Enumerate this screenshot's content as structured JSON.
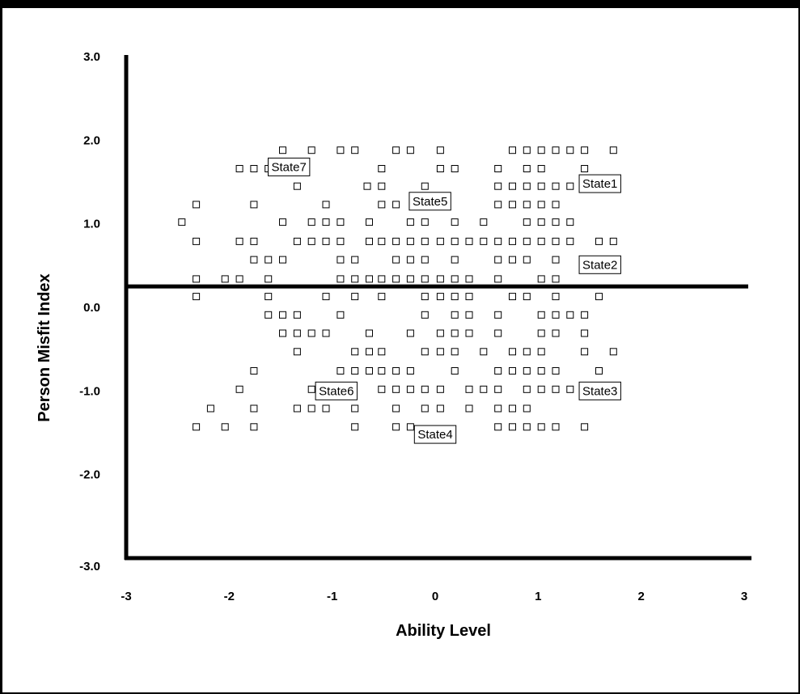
{
  "chart_data": {
    "type": "scatter",
    "title": "",
    "xlabel": "Ability Level",
    "ylabel": "Person Misfit Index",
    "xlim": [
      -3,
      3
    ],
    "ylim": [
      -3,
      3
    ],
    "x_ticks": [
      "-3",
      "-2",
      "-1",
      "0",
      "1",
      "2",
      "3"
    ],
    "x_tick_values": [
      -3,
      -2,
      -1,
      0,
      1,
      2,
      3
    ],
    "y_ticks": [
      "3.0",
      "2.0",
      "1.0",
      "0.0",
      "-1.0",
      "-2.0",
      "-3.0"
    ],
    "y_tick_values": [
      3,
      2,
      1,
      0,
      -1,
      -2,
      -3
    ],
    "reference_line_y": 0.25,
    "grid": false,
    "marker": "open-square",
    "state_labels": [
      {
        "text": "State7",
        "x": -1.42,
        "y": 1.68
      },
      {
        "text": "State1",
        "x": 1.6,
        "y": 1.48
      },
      {
        "text": "State5",
        "x": -0.05,
        "y": 1.27
      },
      {
        "text": "State2",
        "x": 1.6,
        "y": 0.51
      },
      {
        "text": "State6",
        "x": -0.96,
        "y": -1.0
      },
      {
        "text": "State3",
        "x": 1.6,
        "y": -1.0
      },
      {
        "text": "State4",
        "x": 0.0,
        "y": -1.52
      }
    ],
    "points": [
      [
        -1.48,
        1.88
      ],
      [
        -1.2,
        1.88
      ],
      [
        -0.92,
        1.88
      ],
      [
        -0.78,
        1.88
      ],
      [
        -0.38,
        1.88
      ],
      [
        -0.24,
        1.88
      ],
      [
        0.05,
        1.88
      ],
      [
        0.75,
        1.88
      ],
      [
        0.89,
        1.88
      ],
      [
        1.03,
        1.88
      ],
      [
        1.17,
        1.88
      ],
      [
        1.31,
        1.88
      ],
      [
        1.45,
        1.88
      ],
      [
        1.73,
        1.88
      ],
      [
        -1.9,
        1.66
      ],
      [
        -1.76,
        1.66
      ],
      [
        -1.62,
        1.66
      ],
      [
        -0.52,
        1.66
      ],
      [
        0.05,
        1.66
      ],
      [
        0.19,
        1.66
      ],
      [
        0.61,
        1.66
      ],
      [
        0.89,
        1.66
      ],
      [
        1.03,
        1.66
      ],
      [
        1.45,
        1.66
      ],
      [
        -1.34,
        1.45
      ],
      [
        -0.66,
        1.45
      ],
      [
        -0.52,
        1.45
      ],
      [
        -0.1,
        1.45
      ],
      [
        0.61,
        1.45
      ],
      [
        0.75,
        1.45
      ],
      [
        0.89,
        1.45
      ],
      [
        1.03,
        1.45
      ],
      [
        1.17,
        1.45
      ],
      [
        1.31,
        1.45
      ],
      [
        -2.32,
        1.23
      ],
      [
        -1.76,
        1.23
      ],
      [
        -1.06,
        1.23
      ],
      [
        -0.52,
        1.23
      ],
      [
        -0.38,
        1.23
      ],
      [
        -0.1,
        1.23
      ],
      [
        0.61,
        1.23
      ],
      [
        0.75,
        1.23
      ],
      [
        0.89,
        1.23
      ],
      [
        1.03,
        1.23
      ],
      [
        1.17,
        1.23
      ],
      [
        -2.46,
        1.02
      ],
      [
        -1.48,
        1.02
      ],
      [
        -1.2,
        1.02
      ],
      [
        -1.06,
        1.02
      ],
      [
        -0.92,
        1.02
      ],
      [
        -0.64,
        1.02
      ],
      [
        -0.24,
        1.02
      ],
      [
        -0.1,
        1.02
      ],
      [
        0.19,
        1.02
      ],
      [
        0.47,
        1.02
      ],
      [
        0.89,
        1.02
      ],
      [
        1.03,
        1.02
      ],
      [
        1.17,
        1.02
      ],
      [
        1.31,
        1.02
      ],
      [
        -2.32,
        0.79
      ],
      [
        -1.9,
        0.79
      ],
      [
        -1.76,
        0.79
      ],
      [
        -1.34,
        0.79
      ],
      [
        -1.2,
        0.79
      ],
      [
        -1.06,
        0.79
      ],
      [
        -0.92,
        0.79
      ],
      [
        -0.64,
        0.79
      ],
      [
        -0.52,
        0.79
      ],
      [
        -0.38,
        0.79
      ],
      [
        -0.24,
        0.79
      ],
      [
        -0.1,
        0.79
      ],
      [
        0.05,
        0.79
      ],
      [
        0.19,
        0.79
      ],
      [
        0.33,
        0.79
      ],
      [
        0.47,
        0.79
      ],
      [
        0.61,
        0.79
      ],
      [
        0.75,
        0.79
      ],
      [
        0.89,
        0.79
      ],
      [
        1.03,
        0.79
      ],
      [
        1.17,
        0.79
      ],
      [
        1.31,
        0.79
      ],
      [
        1.59,
        0.79
      ],
      [
        1.73,
        0.79
      ],
      [
        -1.76,
        0.57
      ],
      [
        -1.62,
        0.57
      ],
      [
        -1.48,
        0.57
      ],
      [
        -0.92,
        0.57
      ],
      [
        -0.78,
        0.57
      ],
      [
        -0.38,
        0.57
      ],
      [
        -0.24,
        0.57
      ],
      [
        -0.1,
        0.57
      ],
      [
        0.19,
        0.57
      ],
      [
        0.61,
        0.57
      ],
      [
        0.75,
        0.57
      ],
      [
        0.89,
        0.57
      ],
      [
        1.17,
        0.57
      ],
      [
        -2.32,
        0.34
      ],
      [
        -2.04,
        0.34
      ],
      [
        -1.9,
        0.34
      ],
      [
        -1.62,
        0.34
      ],
      [
        -0.92,
        0.34
      ],
      [
        -0.78,
        0.34
      ],
      [
        -0.64,
        0.34
      ],
      [
        -0.52,
        0.34
      ],
      [
        -0.38,
        0.34
      ],
      [
        -0.24,
        0.34
      ],
      [
        -0.1,
        0.34
      ],
      [
        0.05,
        0.34
      ],
      [
        0.19,
        0.34
      ],
      [
        0.33,
        0.34
      ],
      [
        0.61,
        0.34
      ],
      [
        1.03,
        0.34
      ],
      [
        1.17,
        0.34
      ],
      [
        -2.32,
        0.13
      ],
      [
        -1.62,
        0.13
      ],
      [
        -1.06,
        0.13
      ],
      [
        -0.78,
        0.13
      ],
      [
        -0.52,
        0.13
      ],
      [
        -0.1,
        0.13
      ],
      [
        0.05,
        0.13
      ],
      [
        0.19,
        0.13
      ],
      [
        0.33,
        0.13
      ],
      [
        0.75,
        0.13
      ],
      [
        0.89,
        0.13
      ],
      [
        1.17,
        0.13
      ],
      [
        1.59,
        0.13
      ],
      [
        -1.62,
        -0.09
      ],
      [
        -1.48,
        -0.09
      ],
      [
        -1.34,
        -0.09
      ],
      [
        -0.92,
        -0.09
      ],
      [
        -0.1,
        -0.09
      ],
      [
        0.19,
        -0.09
      ],
      [
        0.33,
        -0.09
      ],
      [
        0.61,
        -0.09
      ],
      [
        1.03,
        -0.09
      ],
      [
        1.17,
        -0.09
      ],
      [
        1.31,
        -0.09
      ],
      [
        1.45,
        -0.09
      ],
      [
        -1.48,
        -0.31
      ],
      [
        -1.34,
        -0.31
      ],
      [
        -1.2,
        -0.31
      ],
      [
        -1.06,
        -0.31
      ],
      [
        -0.64,
        -0.31
      ],
      [
        -0.24,
        -0.31
      ],
      [
        0.05,
        -0.31
      ],
      [
        0.19,
        -0.31
      ],
      [
        0.33,
        -0.31
      ],
      [
        0.61,
        -0.31
      ],
      [
        1.03,
        -0.31
      ],
      [
        1.17,
        -0.31
      ],
      [
        1.45,
        -0.31
      ],
      [
        -1.34,
        -0.53
      ],
      [
        -0.78,
        -0.53
      ],
      [
        -0.64,
        -0.53
      ],
      [
        -0.52,
        -0.53
      ],
      [
        -0.1,
        -0.53
      ],
      [
        0.05,
        -0.53
      ],
      [
        0.19,
        -0.53
      ],
      [
        0.47,
        -0.53
      ],
      [
        0.75,
        -0.53
      ],
      [
        0.89,
        -0.53
      ],
      [
        1.03,
        -0.53
      ],
      [
        1.45,
        -0.53
      ],
      [
        1.73,
        -0.53
      ],
      [
        -1.76,
        -0.76
      ],
      [
        -0.92,
        -0.76
      ],
      [
        -0.78,
        -0.76
      ],
      [
        -0.64,
        -0.76
      ],
      [
        -0.52,
        -0.76
      ],
      [
        -0.38,
        -0.76
      ],
      [
        -0.24,
        -0.76
      ],
      [
        0.19,
        -0.76
      ],
      [
        0.61,
        -0.76
      ],
      [
        0.75,
        -0.76
      ],
      [
        0.89,
        -0.76
      ],
      [
        1.03,
        -0.76
      ],
      [
        1.17,
        -0.76
      ],
      [
        1.59,
        -0.76
      ],
      [
        -1.9,
        -0.98
      ],
      [
        -1.2,
        -0.98
      ],
      [
        -0.52,
        -0.98
      ],
      [
        -0.38,
        -0.98
      ],
      [
        -0.24,
        -0.98
      ],
      [
        -0.1,
        -0.98
      ],
      [
        0.05,
        -0.98
      ],
      [
        0.33,
        -0.98
      ],
      [
        0.47,
        -0.98
      ],
      [
        0.61,
        -0.98
      ],
      [
        0.89,
        -0.98
      ],
      [
        1.03,
        -0.98
      ],
      [
        1.17,
        -0.98
      ],
      [
        1.31,
        -0.98
      ],
      [
        -2.18,
        -1.21
      ],
      [
        -1.76,
        -1.21
      ],
      [
        -1.34,
        -1.21
      ],
      [
        -1.2,
        -1.21
      ],
      [
        -1.06,
        -1.21
      ],
      [
        -0.78,
        -1.21
      ],
      [
        -0.38,
        -1.21
      ],
      [
        -0.1,
        -1.21
      ],
      [
        0.05,
        -1.21
      ],
      [
        0.33,
        -1.21
      ],
      [
        0.61,
        -1.21
      ],
      [
        0.75,
        -1.21
      ],
      [
        0.89,
        -1.21
      ],
      [
        -2.32,
        -1.43
      ],
      [
        -2.04,
        -1.43
      ],
      [
        -1.76,
        -1.43
      ],
      [
        -0.78,
        -1.43
      ],
      [
        -0.38,
        -1.43
      ],
      [
        -0.24,
        -1.43
      ],
      [
        0.61,
        -1.43
      ],
      [
        0.75,
        -1.43
      ],
      [
        0.89,
        -1.43
      ],
      [
        1.03,
        -1.43
      ],
      [
        1.17,
        -1.43
      ],
      [
        1.45,
        -1.43
      ]
    ]
  }
}
